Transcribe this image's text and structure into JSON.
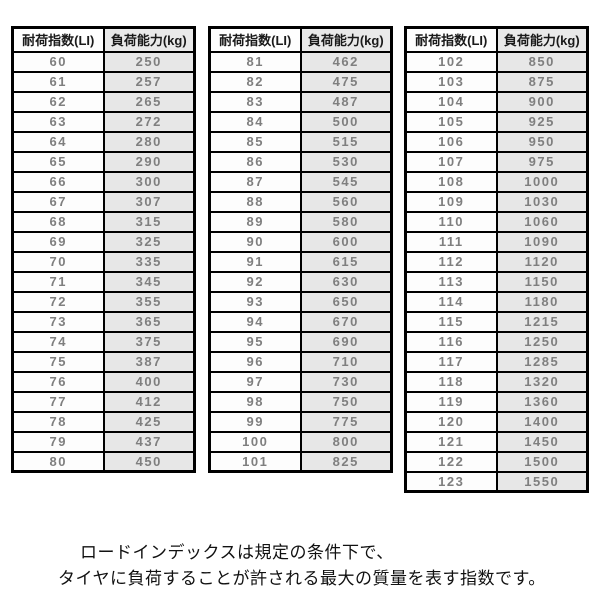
{
  "figure": {
    "background": "#ffffff",
    "description_visible_text_only": true
  },
  "colors": {
    "border": "#000000",
    "header_text": "#1a1a1a",
    "cell_text": "#7f7f7f",
    "kg_column_bg": "#e7e7e7",
    "li_column_bg": "#fdfdfd"
  },
  "tables": [
    {
      "headers": {
        "li": "耐荷指数(LI)",
        "kg": "負荷能力(kg)"
      },
      "rows": [
        [
          "60",
          "250"
        ],
        [
          "61",
          "257"
        ],
        [
          "62",
          "265"
        ],
        [
          "63",
          "272"
        ],
        [
          "64",
          "280"
        ],
        [
          "65",
          "290"
        ],
        [
          "66",
          "300"
        ],
        [
          "67",
          "307"
        ],
        [
          "68",
          "315"
        ],
        [
          "69",
          "325"
        ],
        [
          "70",
          "335"
        ],
        [
          "71",
          "345"
        ],
        [
          "72",
          "355"
        ],
        [
          "73",
          "365"
        ],
        [
          "74",
          "375"
        ],
        [
          "75",
          "387"
        ],
        [
          "76",
          "400"
        ],
        [
          "77",
          "412"
        ],
        [
          "78",
          "425"
        ],
        [
          "79",
          "437"
        ],
        [
          "80",
          "450"
        ]
      ]
    },
    {
      "headers": {
        "li": "耐荷指数(LI)",
        "kg": "負荷能力(kg)"
      },
      "rows": [
        [
          "81",
          "462"
        ],
        [
          "82",
          "475"
        ],
        [
          "83",
          "487"
        ],
        [
          "84",
          "500"
        ],
        [
          "85",
          "515"
        ],
        [
          "86",
          "530"
        ],
        [
          "87",
          "545"
        ],
        [
          "88",
          "560"
        ],
        [
          "89",
          "580"
        ],
        [
          "90",
          "600"
        ],
        [
          "91",
          "615"
        ],
        [
          "92",
          "630"
        ],
        [
          "93",
          "650"
        ],
        [
          "94",
          "670"
        ],
        [
          "95",
          "690"
        ],
        [
          "96",
          "710"
        ],
        [
          "97",
          "730"
        ],
        [
          "98",
          "750"
        ],
        [
          "99",
          "775"
        ],
        [
          "100",
          "800"
        ],
        [
          "101",
          "825"
        ]
      ]
    },
    {
      "headers": {
        "li": "耐荷指数(LI)",
        "kg": "負荷能力(kg)"
      },
      "rows": [
        [
          "102",
          "850"
        ],
        [
          "103",
          "875"
        ],
        [
          "104",
          "900"
        ],
        [
          "105",
          "925"
        ],
        [
          "106",
          "950"
        ],
        [
          "107",
          "975"
        ],
        [
          "108",
          "1000"
        ],
        [
          "109",
          "1030"
        ],
        [
          "110",
          "1060"
        ],
        [
          "111",
          "1090"
        ],
        [
          "112",
          "1120"
        ],
        [
          "113",
          "1150"
        ],
        [
          "114",
          "1180"
        ],
        [
          "115",
          "1215"
        ],
        [
          "116",
          "1250"
        ],
        [
          "117",
          "1285"
        ],
        [
          "118",
          "1320"
        ],
        [
          "119",
          "1360"
        ],
        [
          "120",
          "1400"
        ],
        [
          "121",
          "1450"
        ],
        [
          "122",
          "1500"
        ],
        [
          "123",
          "1550"
        ]
      ]
    }
  ],
  "footer": {
    "line1": "ロードインデックスは規定の条件下で、",
    "line2": "タイヤに負荷することが許される最大の質量を表す指数です。"
  }
}
